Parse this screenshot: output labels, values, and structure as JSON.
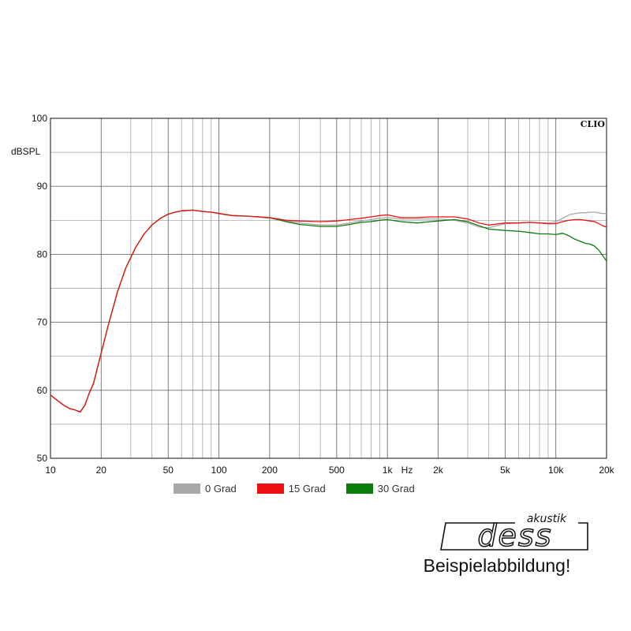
{
  "chart_data": {
    "type": "line",
    "title": "",
    "xlabel": "Hz",
    "ylabel": "dBSPL",
    "xscale": "log",
    "xlim": [
      10,
      20000
    ],
    "ylim": [
      50,
      100
    ],
    "grid": true,
    "badge": "CLIO",
    "x_ticks": [
      {
        "v": 10,
        "label": "10"
      },
      {
        "v": 20,
        "label": "20"
      },
      {
        "v": 50,
        "label": "50"
      },
      {
        "v": 100,
        "label": "100"
      },
      {
        "v": 200,
        "label": "200"
      },
      {
        "v": 500,
        "label": "500"
      },
      {
        "v": 1000,
        "label": "1k"
      },
      {
        "v": 2000,
        "label": "2k"
      },
      {
        "v": 5000,
        "label": "5k"
      },
      {
        "v": 10000,
        "label": "10k"
      },
      {
        "v": 20000,
        "label": "20k"
      }
    ],
    "y_ticks": [
      {
        "v": 50,
        "label": "50"
      },
      {
        "v": 60,
        "label": "60"
      },
      {
        "v": 70,
        "label": "70"
      },
      {
        "v": 80,
        "label": "80"
      },
      {
        "v": 90,
        "label": "90"
      },
      {
        "v": 100,
        "label": "100"
      }
    ],
    "series": [
      {
        "name": "0 Grad",
        "color": "#a8a8a8",
        "x": [
          10,
          11,
          12,
          13,
          14,
          15,
          16,
          17,
          18,
          20,
          22,
          25,
          28,
          32,
          36,
          40,
          45,
          50,
          55,
          60,
          65,
          70,
          80,
          90,
          100,
          120,
          150,
          200,
          250,
          300,
          400,
          500,
          600,
          700,
          800,
          900,
          1000,
          1200,
          1500,
          1800,
          2000,
          2500,
          3000,
          3500,
          4000,
          5000,
          6000,
          7000,
          8000,
          9000,
          10000,
          11000,
          12000,
          13000,
          14000,
          15000,
          16000,
          17000,
          18000,
          19000,
          20000
        ],
        "y": [
          59.3,
          58.5,
          57.8,
          57.3,
          57.1,
          56.8,
          57.8,
          59.6,
          61,
          65.5,
          69.5,
          74.5,
          78,
          81,
          83,
          84.3,
          85.3,
          85.9,
          86.2,
          86.4,
          86.45,
          86.5,
          86.3,
          86.2,
          86.0,
          85.7,
          85.6,
          85.3,
          84.9,
          84.6,
          84.3,
          84.3,
          84.6,
          84.9,
          85.1,
          85.3,
          85.4,
          85.2,
          85.2,
          85.2,
          85.2,
          85.0,
          84.6,
          84.0,
          83.9,
          84.5,
          84.6,
          84.7,
          84.6,
          84.6,
          84.8,
          85.3,
          85.8,
          86.0,
          86.1,
          86.1,
          86.2,
          86.2,
          86.1,
          86.0,
          86.0
        ]
      },
      {
        "name": "15 Grad",
        "color": "#ee1111",
        "x": [
          10,
          11,
          12,
          13,
          14,
          15,
          16,
          17,
          18,
          20,
          22,
          25,
          28,
          32,
          36,
          40,
          45,
          50,
          55,
          60,
          65,
          70,
          80,
          90,
          100,
          120,
          150,
          200,
          250,
          300,
          400,
          500,
          600,
          700,
          800,
          900,
          1000,
          1200,
          1500,
          1800,
          2000,
          2500,
          3000,
          3500,
          4000,
          5000,
          6000,
          7000,
          8000,
          9000,
          10000,
          11000,
          12000,
          13000,
          14000,
          15000,
          16000,
          17000,
          18000,
          19000,
          20000
        ],
        "y": [
          59.3,
          58.5,
          57.8,
          57.3,
          57.1,
          56.8,
          57.8,
          59.6,
          61,
          65.5,
          69.5,
          74.5,
          78,
          81,
          83,
          84.3,
          85.3,
          85.9,
          86.2,
          86.4,
          86.45,
          86.5,
          86.3,
          86.2,
          86.0,
          85.7,
          85.6,
          85.4,
          85.0,
          84.9,
          84.8,
          84.9,
          85.1,
          85.3,
          85.5,
          85.7,
          85.8,
          85.4,
          85.4,
          85.5,
          85.5,
          85.5,
          85.2,
          84.6,
          84.3,
          84.6,
          84.6,
          84.7,
          84.6,
          84.5,
          84.5,
          84.8,
          85.0,
          85.1,
          85.1,
          85.0,
          84.9,
          84.8,
          84.5,
          84.2,
          84.0
        ]
      },
      {
        "name": "30 Grad",
        "color": "#0a7d0a",
        "x": [
          10,
          11,
          12,
          13,
          14,
          15,
          16,
          17,
          18,
          20,
          22,
          25,
          28,
          32,
          36,
          40,
          45,
          50,
          55,
          60,
          65,
          70,
          80,
          90,
          100,
          120,
          150,
          200,
          250,
          300,
          400,
          500,
          600,
          700,
          800,
          900,
          1000,
          1200,
          1500,
          1800,
          2000,
          2500,
          3000,
          3500,
          4000,
          5000,
          6000,
          7000,
          8000,
          9000,
          10000,
          11000,
          12000,
          13000,
          14000,
          15000,
          16000,
          17000,
          18000,
          19000,
          20000
        ],
        "y": [
          59.3,
          58.5,
          57.8,
          57.3,
          57.1,
          56.8,
          57.8,
          59.6,
          61,
          65.5,
          69.5,
          74.5,
          78,
          81,
          83,
          84.3,
          85.3,
          85.9,
          86.2,
          86.4,
          86.45,
          86.5,
          86.3,
          86.2,
          86.0,
          85.7,
          85.6,
          85.4,
          84.8,
          84.4,
          84.1,
          84.1,
          84.4,
          84.7,
          84.8,
          85.0,
          85.1,
          84.8,
          84.6,
          84.8,
          84.9,
          85.1,
          84.8,
          84.2,
          83.7,
          83.5,
          83.4,
          83.2,
          83.0,
          83.0,
          82.9,
          83.1,
          82.7,
          82.2,
          81.9,
          81.6,
          81.5,
          81.2,
          80.6,
          79.8,
          79.0
        ]
      }
    ],
    "legend": {
      "position": "bottom"
    }
  },
  "brand": {
    "script": "dess",
    "tagline": "akustik"
  },
  "caption": "Beispielabbildung!"
}
